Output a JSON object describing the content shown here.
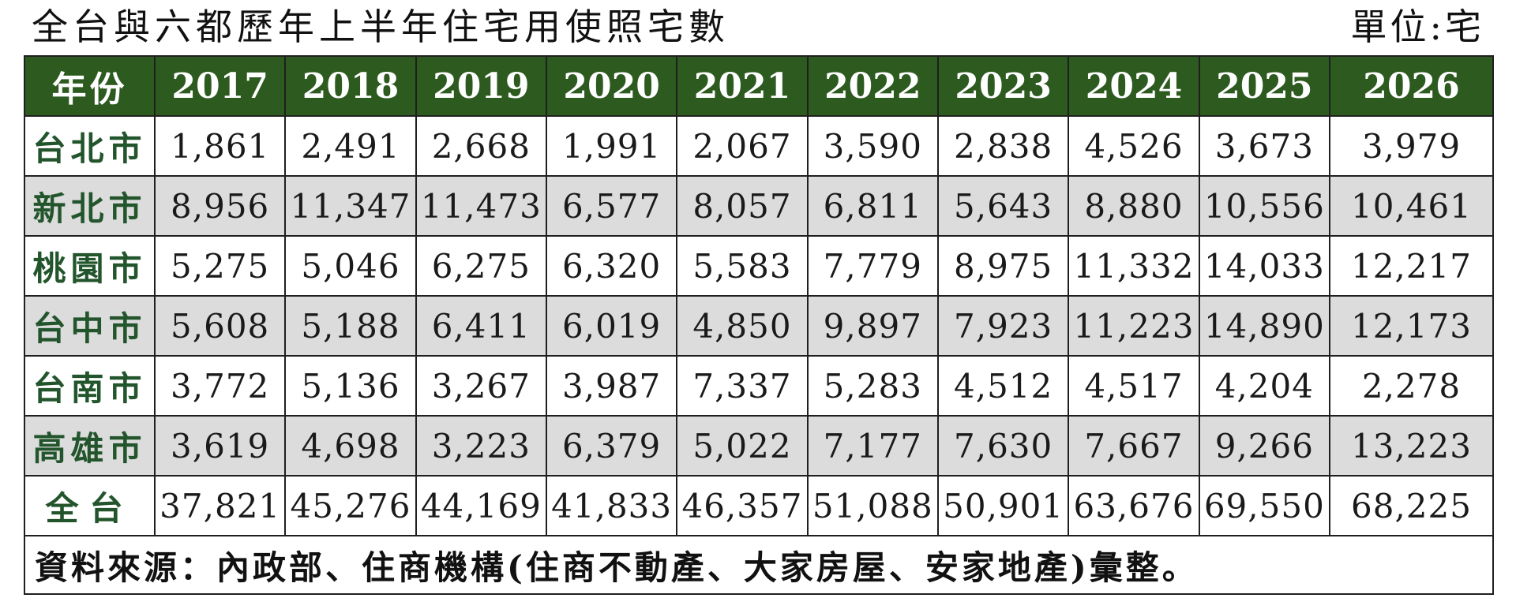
{
  "header": {
    "title": "全台與六都歷年上半年住宅用使照宅數",
    "unit": "單位:宅"
  },
  "table": {
    "corner_label": "年份",
    "years": [
      "2017",
      "2018",
      "2019",
      "2020",
      "2021",
      "2022",
      "2023",
      "2024",
      "2025",
      "2026"
    ],
    "rows": [
      {
        "name": "台北市",
        "values": [
          "1,861",
          "2,491",
          "2,668",
          "1,991",
          "2,067",
          "3,590",
          "2,838",
          "4,526",
          "3,673",
          "3,979"
        ]
      },
      {
        "name": "新北市",
        "values": [
          "8,956",
          "11,347",
          "11,473",
          "6,577",
          "8,057",
          "6,811",
          "5,643",
          "8,880",
          "10,556",
          "10,461"
        ]
      },
      {
        "name": "桃園市",
        "values": [
          "5,275",
          "5,046",
          "6,275",
          "6,320",
          "5,583",
          "7,779",
          "8,975",
          "11,332",
          "14,033",
          "12,217"
        ]
      },
      {
        "name": "台中市",
        "values": [
          "5,608",
          "5,188",
          "6,411",
          "6,019",
          "4,850",
          "9,897",
          "7,923",
          "11,223",
          "14,890",
          "12,173"
        ]
      },
      {
        "name": "台南市",
        "values": [
          "3,772",
          "5,136",
          "3,267",
          "3,987",
          "7,337",
          "5,283",
          "4,512",
          "4,517",
          "4,204",
          "2,278"
        ]
      },
      {
        "name": "高雄市",
        "values": [
          "3,619",
          "4,698",
          "3,223",
          "6,379",
          "5,022",
          "7,177",
          "7,630",
          "7,667",
          "9,266",
          "13,223"
        ]
      },
      {
        "name": "全台",
        "values": [
          "37,821",
          "45,276",
          "44,169",
          "41,833",
          "46,357",
          "51,088",
          "50,901",
          "63,676",
          "69,550",
          "68,225"
        ]
      }
    ],
    "source_note": "資料來源：內政部、住商機構(住商不動產、大家房屋、安家地產)彙整。"
  },
  "colors": {
    "header_bg": "#2d5a1f",
    "header_text": "#ffffff",
    "row_label_text": "#23552c",
    "shaded_row_bg": "#dcdcdc"
  }
}
